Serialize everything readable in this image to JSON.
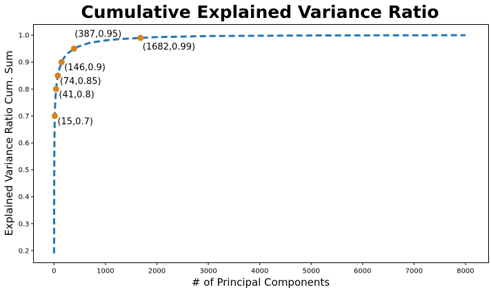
{
  "chart_data": {
    "type": "line",
    "title": "Cumulative Explained Variance Ratio",
    "xlabel": "# of Principal Components",
    "ylabel": "Explained Variance Ratio Cum. Sum",
    "xlim": [
      -400,
      8450
    ],
    "ylim": [
      0.155,
      1.04
    ],
    "xticks": [
      0,
      1000,
      2000,
      3000,
      4000,
      5000,
      6000,
      7000,
      8000
    ],
    "yticks": [
      0.2,
      0.3,
      0.4,
      0.5,
      0.6,
      0.7,
      0.8,
      0.9,
      1.0
    ],
    "ytick_labels": [
      "0.2",
      "0.3",
      "0.4",
      "0.5",
      "0.6",
      "0.7",
      "0.8",
      "0.9",
      "1.0"
    ],
    "grid": false,
    "colors": {
      "line": "#1f77b4",
      "marker": "#d9821e"
    },
    "series": [
      {
        "style": "dashed",
        "x": [
          1,
          2,
          4,
          6,
          9,
          12,
          15,
          20,
          27,
          35,
          41,
          55,
          74,
          100,
          146,
          200,
          270,
          387,
          500,
          700,
          1000,
          1300,
          1682,
          2000,
          2500,
          3000,
          4000,
          5000,
          6000,
          7000,
          8000
        ],
        "y": [
          0.19,
          0.33,
          0.47,
          0.55,
          0.63,
          0.67,
          0.7,
          0.735,
          0.765,
          0.785,
          0.8,
          0.825,
          0.85,
          0.872,
          0.9,
          0.918,
          0.933,
          0.95,
          0.96,
          0.972,
          0.981,
          0.986,
          0.99,
          0.993,
          0.995,
          0.997,
          0.998,
          0.999,
          0.9995,
          0.9998,
          1.0
        ]
      }
    ],
    "markers": [
      {
        "x": 15,
        "y": 0.7,
        "label": "(15,0.7)"
      },
      {
        "x": 41,
        "y": 0.8,
        "label": "(41,0.8)"
      },
      {
        "x": 74,
        "y": 0.85,
        "label": "(74,0.85)"
      },
      {
        "x": 146,
        "y": 0.9,
        "label": "(146,0.9)"
      },
      {
        "x": 387,
        "y": 0.95,
        "label": "(387,0.95)"
      },
      {
        "x": 1682,
        "y": 0.99,
        "label": "(1682,0.99)"
      }
    ]
  }
}
